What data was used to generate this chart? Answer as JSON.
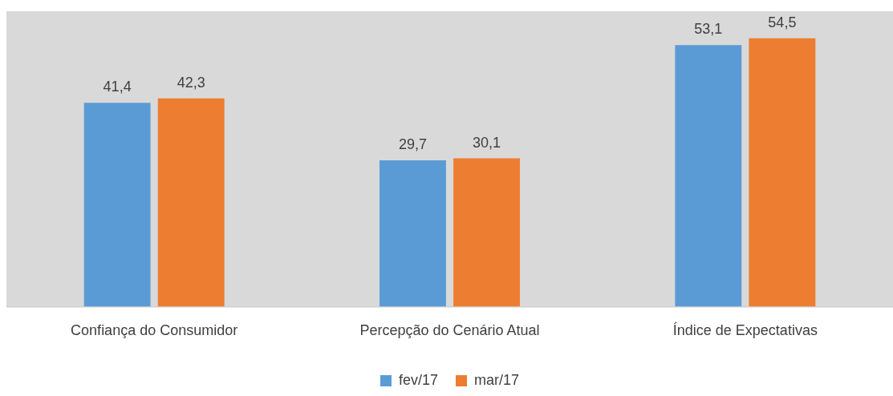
{
  "chart_data": {
    "type": "bar",
    "categories": [
      "Confiança do Consumidor",
      "Percepção do Cenário Atual",
      "Índice de Expectativas"
    ],
    "series": [
      {
        "name": "fev/17",
        "color": "#5b9bd5",
        "values": [
          41.4,
          29.7,
          53.1
        ],
        "value_labels": [
          "41,4",
          "29,7",
          "53,1"
        ]
      },
      {
        "name": "mar/17",
        "color": "#ed7d31",
        "values": [
          42.3,
          30.1,
          54.5
        ],
        "value_labels": [
          "42,3",
          "30,1",
          "54,5"
        ]
      }
    ],
    "tick_labels": "x",
    "grid": false,
    "legend": "bottom"
  }
}
